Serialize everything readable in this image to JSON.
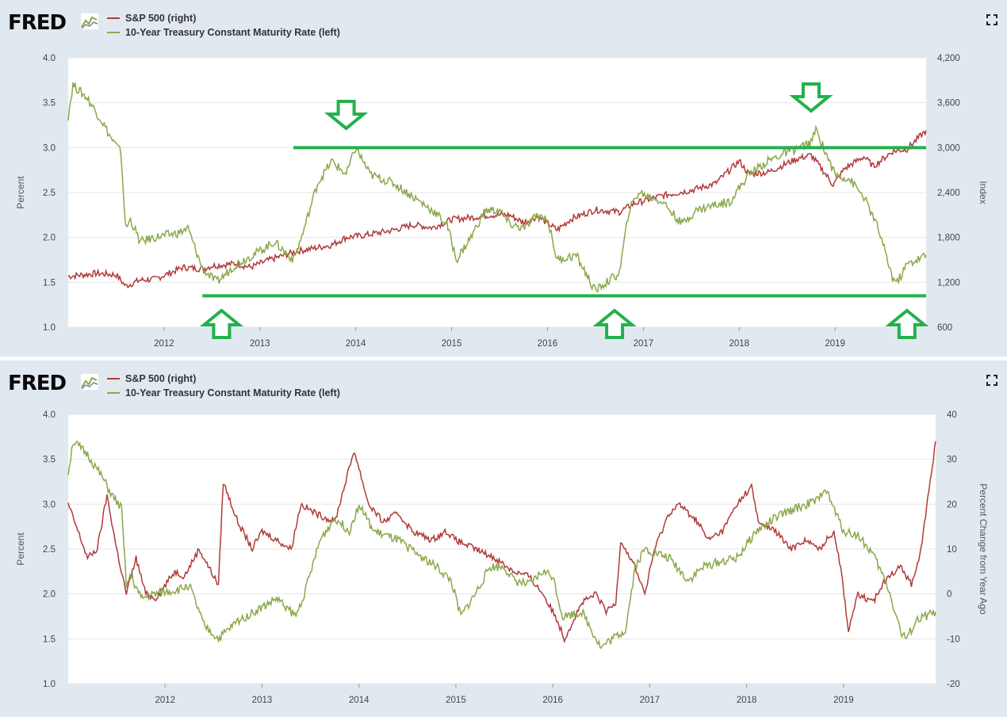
{
  "brand": "FRED",
  "colors": {
    "sp500": "#b03a3a",
    "treasury": "#8aa84a",
    "annotation": "#22b14c",
    "grid": "#e6e6e6"
  },
  "icons": {
    "brand": "fred-graph-icon",
    "expand": "expand-icon"
  },
  "charts": [
    {
      "legend": {
        "sp500": "S&P 500 (right)",
        "treasury": "10-Year Treasury Constant Maturity Rate (left)"
      },
      "left_axis_title": "Percent",
      "right_axis_title": "Index"
    },
    {
      "legend": {
        "sp500": "S&P 500 (right)",
        "treasury": "10-Year Treasury Constant Maturity Rate (left)"
      },
      "left_axis_title": "Percent",
      "right_axis_title": "Percent Change from Year Ago"
    }
  ],
  "chart_data": [
    {
      "type": "line",
      "x_ticks": [
        "2012",
        "2013",
        "2014",
        "2015",
        "2016",
        "2017",
        "2018",
        "2019"
      ],
      "xlim": [
        2011.0,
        2019.95
      ],
      "left_ylim": [
        1.0,
        4.0
      ],
      "left_ticks": [
        "1.0",
        "1.5",
        "2.0",
        "2.5",
        "3.0",
        "3.5",
        "4.0"
      ],
      "right_ylim": [
        600,
        4200
      ],
      "right_ticks": [
        "600",
        "1,200",
        "1,800",
        "2,400",
        "3,000",
        "3,600",
        "4,200"
      ],
      "series": [
        {
          "name": "S&P 500 (right)",
          "axis": "right",
          "x": [
            2011.0,
            2011.3,
            2011.5,
            2011.6,
            2011.75,
            2011.9,
            2012.2,
            2012.4,
            2012.5,
            2012.75,
            2012.9,
            2013.1,
            2013.4,
            2013.5,
            2013.75,
            2013.9,
            2014.1,
            2014.4,
            2014.6,
            2014.8,
            2015.0,
            2015.3,
            2015.4,
            2015.6,
            2015.75,
            2015.9,
            2016.1,
            2016.25,
            2016.5,
            2016.75,
            2016.9,
            2017.2,
            2017.5,
            2017.75,
            2018.0,
            2018.1,
            2018.3,
            2018.6,
            2018.75,
            2018.9,
            2018.98,
            2019.1,
            2019.3,
            2019.4,
            2019.6,
            2019.75,
            2019.95
          ],
          "y": [
            1280,
            1320,
            1300,
            1150,
            1230,
            1240,
            1400,
            1380,
            1420,
            1450,
            1400,
            1500,
            1620,
            1640,
            1700,
            1800,
            1830,
            1900,
            1970,
            1930,
            2040,
            2080,
            2100,
            2100,
            2000,
            2080,
            1900,
            2050,
            2170,
            2140,
            2250,
            2360,
            2430,
            2520,
            2820,
            2650,
            2670,
            2850,
            2900,
            2650,
            2500,
            2720,
            2880,
            2750,
            2950,
            2980,
            3230
          ]
        },
        {
          "name": "10-Year Treasury Constant Maturity Rate (left)",
          "axis": "left",
          "x": [
            2011.0,
            2011.05,
            2011.2,
            2011.35,
            2011.45,
            2011.55,
            2011.6,
            2011.65,
            2011.75,
            2011.9,
            2012.15,
            2012.25,
            2012.4,
            2012.55,
            2012.75,
            2013.0,
            2013.15,
            2013.35,
            2013.45,
            2013.6,
            2013.75,
            2013.9,
            2014.0,
            2014.15,
            2014.4,
            2014.6,
            2014.8,
            2014.95,
            2015.05,
            2015.2,
            2015.35,
            2015.5,
            2015.6,
            2015.75,
            2015.9,
            2016.0,
            2016.1,
            2016.3,
            2016.5,
            2016.55,
            2016.75,
            2016.85,
            2016.95,
            2017.2,
            2017.4,
            2017.55,
            2017.7,
            2017.9,
            2018.1,
            2018.3,
            2018.5,
            2018.75,
            2018.8,
            2019.0,
            2019.15,
            2019.3,
            2019.45,
            2019.6,
            2019.65,
            2019.75,
            2019.95
          ],
          "y": [
            3.35,
            3.7,
            3.55,
            3.3,
            3.1,
            2.95,
            2.1,
            2.2,
            1.95,
            2.0,
            2.05,
            2.1,
            1.65,
            1.5,
            1.7,
            1.85,
            1.95,
            1.75,
            2.05,
            2.6,
            2.85,
            2.7,
            3.0,
            2.7,
            2.6,
            2.45,
            2.3,
            2.15,
            1.75,
            2.0,
            2.3,
            2.3,
            2.15,
            2.1,
            2.25,
            2.2,
            1.75,
            1.8,
            1.4,
            1.45,
            1.6,
            2.3,
            2.5,
            2.4,
            2.15,
            2.3,
            2.35,
            2.4,
            2.7,
            2.85,
            2.95,
            3.05,
            3.2,
            2.7,
            2.65,
            2.45,
            2.1,
            1.55,
            1.5,
            1.7,
            1.8
          ]
        }
      ],
      "annotations": {
        "resistance_level": 3.0,
        "support_level": 1.35
      }
    },
    {
      "type": "line",
      "x_ticks": [
        "2012",
        "2013",
        "2014",
        "2015",
        "2016",
        "2017",
        "2018",
        "2019"
      ],
      "xlim": [
        2011.0,
        2019.95
      ],
      "left_ylim": [
        1.0,
        4.0
      ],
      "left_ticks": [
        "1.0",
        "1.5",
        "2.0",
        "2.5",
        "3.0",
        "3.5",
        "4.0"
      ],
      "right_ylim": [
        -20,
        40
      ],
      "right_ticks": [
        "-20",
        "-10",
        "0",
        "10",
        "20",
        "30",
        "40"
      ],
      "series": [
        {
          "name": "S&P 500 (right)",
          "axis": "right",
          "x": [
            2011.0,
            2011.1,
            2011.2,
            2011.3,
            2011.4,
            2011.5,
            2011.6,
            2011.7,
            2011.8,
            2011.9,
            2012.1,
            2012.2,
            2012.35,
            2012.55,
            2012.6,
            2012.75,
            2012.9,
            2013.0,
            2013.15,
            2013.3,
            2013.4,
            2013.55,
            2013.75,
            2013.9,
            2013.95,
            2014.1,
            2014.25,
            2014.4,
            2014.55,
            2014.75,
            2014.9,
            2015.0,
            2015.2,
            2015.4,
            2015.6,
            2015.75,
            2015.9,
            2016.05,
            2016.12,
            2016.3,
            2016.45,
            2016.55,
            2016.65,
            2016.7,
            2016.85,
            2016.95,
            2017.05,
            2017.2,
            2017.3,
            2017.5,
            2017.6,
            2017.75,
            2017.9,
            2018.05,
            2018.12,
            2018.3,
            2018.45,
            2018.6,
            2018.75,
            2018.9,
            2018.97,
            2019.05,
            2019.15,
            2019.3,
            2019.45,
            2019.6,
            2019.7,
            2019.8,
            2019.95
          ],
          "y": [
            20,
            14,
            8,
            10,
            22,
            10,
            0,
            8,
            0,
            -1,
            5,
            4,
            10,
            2,
            25,
            16,
            10,
            14,
            12,
            10,
            20,
            18,
            16,
            28,
            32,
            20,
            16,
            18,
            14,
            12,
            14,
            12,
            10,
            8,
            5,
            4,
            0,
            -6,
            -10,
            -2,
            0,
            -4,
            -2,
            12,
            6,
            0,
            10,
            18,
            20,
            16,
            12,
            14,
            20,
            24,
            16,
            14,
            10,
            12,
            10,
            14,
            6,
            -8,
            0,
            -2,
            4,
            6,
            2,
            10,
            34
          ]
        },
        {
          "name": "10-Year Treasury Constant Maturity Rate (left)",
          "axis": "left",
          "x": [
            2011.0,
            2011.05,
            2011.2,
            2011.35,
            2011.45,
            2011.55,
            2011.6,
            2011.65,
            2011.75,
            2011.9,
            2012.15,
            2012.25,
            2012.4,
            2012.55,
            2012.75,
            2013.0,
            2013.15,
            2013.35,
            2013.45,
            2013.6,
            2013.75,
            2013.9,
            2014.0,
            2014.15,
            2014.4,
            2014.6,
            2014.8,
            2014.95,
            2015.05,
            2015.2,
            2015.35,
            2015.5,
            2015.6,
            2015.75,
            2015.9,
            2016.0,
            2016.1,
            2016.3,
            2016.5,
            2016.55,
            2016.75,
            2016.85,
            2016.95,
            2017.2,
            2017.4,
            2017.55,
            2017.7,
            2017.9,
            2018.1,
            2018.3,
            2018.5,
            2018.75,
            2018.8,
            2019.0,
            2019.15,
            2019.3,
            2019.45,
            2019.6,
            2019.65,
            2019.75,
            2019.95
          ],
          "y": [
            3.35,
            3.7,
            3.55,
            3.3,
            3.1,
            2.95,
            2.1,
            2.2,
            1.95,
            2.0,
            2.05,
            2.1,
            1.65,
            1.5,
            1.7,
            1.85,
            1.95,
            1.75,
            2.05,
            2.6,
            2.85,
            2.7,
            3.0,
            2.7,
            2.6,
            2.45,
            2.3,
            2.15,
            1.75,
            2.0,
            2.3,
            2.3,
            2.15,
            2.1,
            2.25,
            2.2,
            1.75,
            1.8,
            1.4,
            1.45,
            1.6,
            2.3,
            2.5,
            2.4,
            2.15,
            2.3,
            2.35,
            2.4,
            2.7,
            2.85,
            2.95,
            3.05,
            3.2,
            2.7,
            2.65,
            2.45,
            2.1,
            1.55,
            1.5,
            1.7,
            1.8
          ]
        }
      ]
    }
  ]
}
